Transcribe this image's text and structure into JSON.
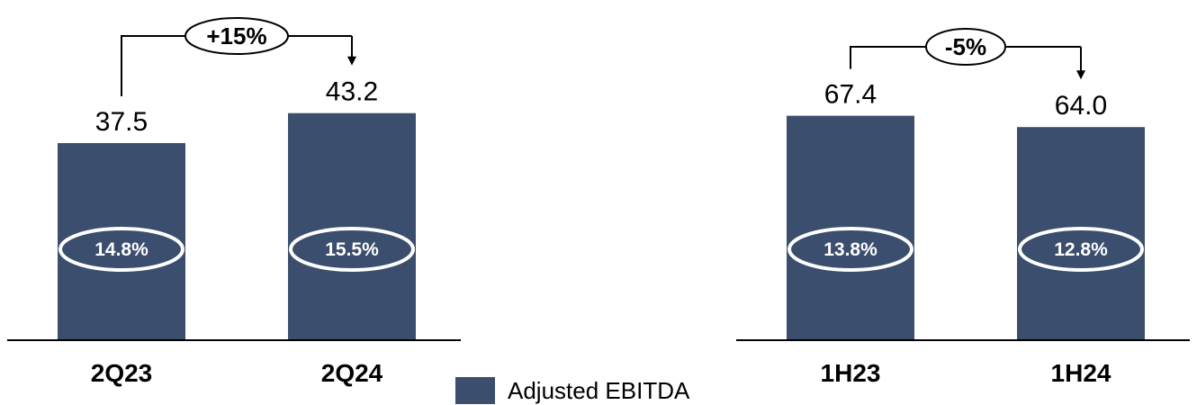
{
  "chart_data": [
    {
      "type": "bar",
      "categories": [
        "2Q23",
        "2Q24"
      ],
      "values": [
        37.5,
        43.2
      ],
      "value_labels": [
        "37.5",
        "43.2"
      ],
      "margins": [
        "14.8%",
        "15.5%"
      ],
      "change": "+15%"
    },
    {
      "type": "bar",
      "categories": [
        "1H23",
        "1H24"
      ],
      "values": [
        67.4,
        64.0
      ],
      "value_labels": [
        "67.4",
        "64.0"
      ],
      "margins": [
        "13.8%",
        "12.8%"
      ],
      "change": "-5%"
    }
  ],
  "legend": {
    "label": "Adjusted EBITDA"
  },
  "colors": {
    "bar": "#3b4e6e",
    "margin_ellipse": "#ffffff",
    "axis": "#000000"
  }
}
